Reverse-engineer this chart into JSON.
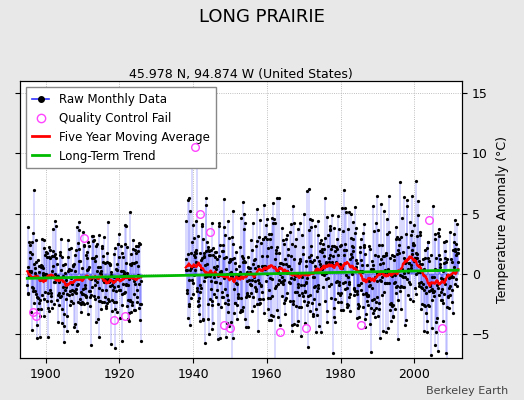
{
  "title": "LONG PRAIRIE",
  "subtitle": "45.978 N, 94.874 W (United States)",
  "ylabel_right": "Temperature Anomaly (°C)",
  "credit": "Berkeley Earth",
  "xlim": [
    1893,
    2013
  ],
  "ylim": [
    -7,
    16
  ],
  "yticks": [
    -5,
    0,
    5,
    10,
    15
  ],
  "xticks": [
    1900,
    1920,
    1940,
    1960,
    1980,
    2000
  ],
  "background_color": "#e8e8e8",
  "plot_bg_color": "#ffffff",
  "seed": 12345,
  "start_year": 1895.0,
  "end_year": 2012.0,
  "gap_start": 1926.0,
  "gap_end": 1938.0,
  "line_color": "#3333ff",
  "dot_color": "#000000",
  "ma_color": "#ff0000",
  "trend_color": "#00bb00",
  "qc_color": "#ff44ff",
  "title_fontsize": 13,
  "subtitle_fontsize": 9,
  "tick_fontsize": 9,
  "legend_fontsize": 8.5,
  "noise_scale_early": 2.2,
  "noise_scale_late": 2.8
}
